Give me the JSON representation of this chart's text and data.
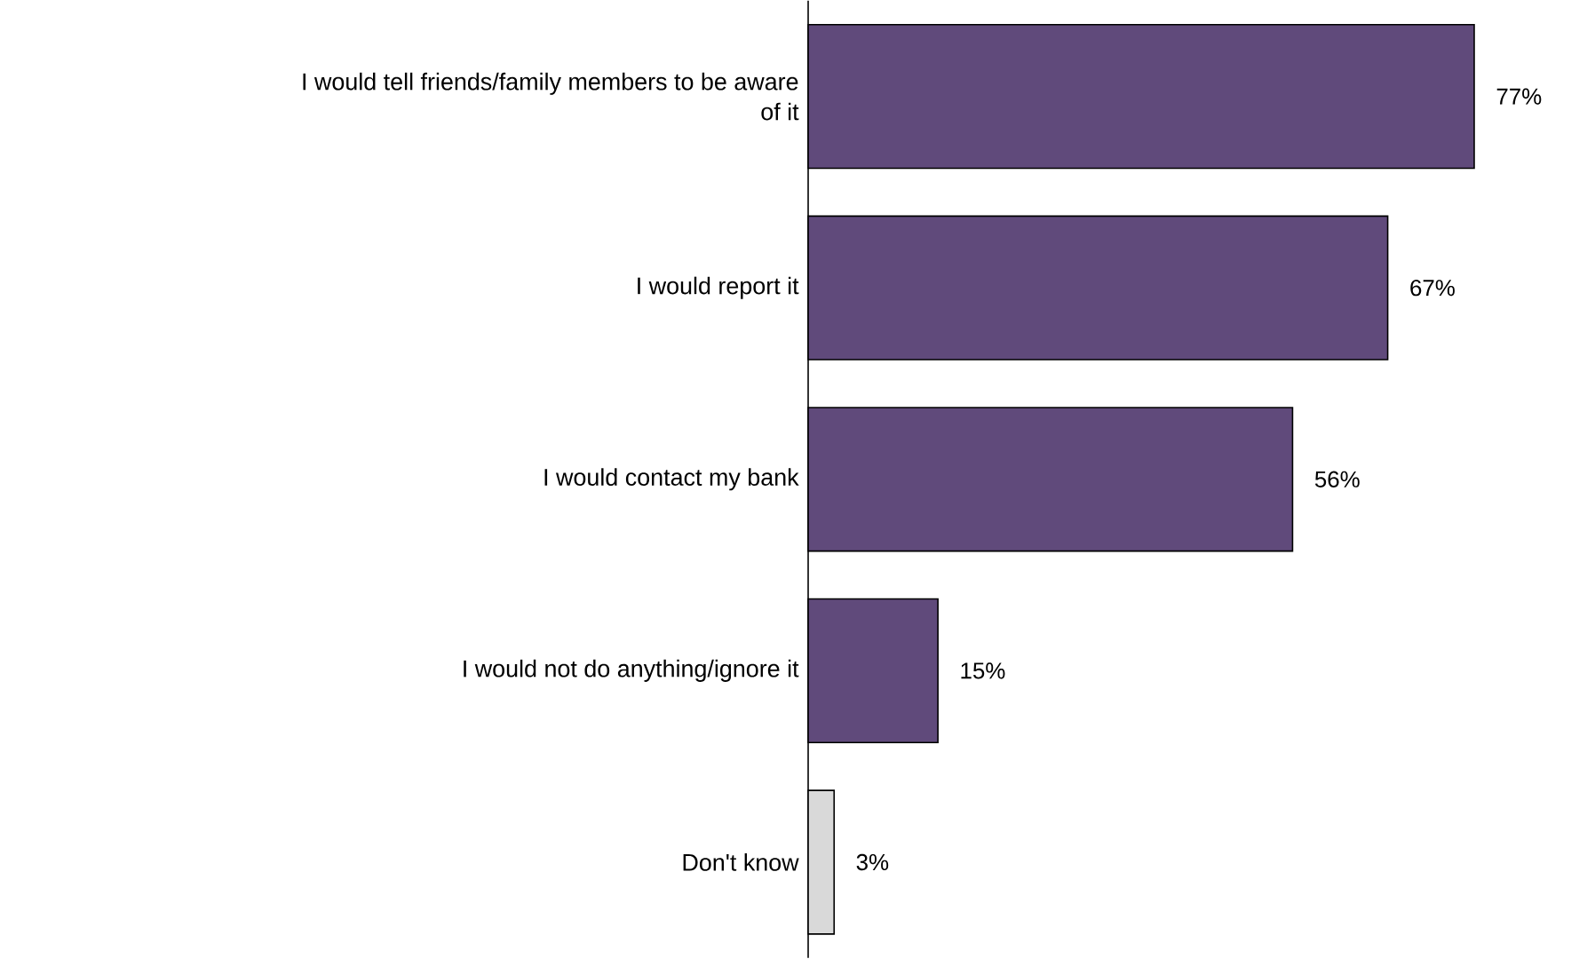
{
  "chart_data": {
    "type": "bar",
    "orientation": "horizontal",
    "categories": [
      "I would tell friends/family members to be aware of it",
      "I would report it",
      "I would contact my bank",
      "I would not do anything/ignore it",
      "Don't know"
    ],
    "values": [
      77,
      67,
      56,
      15,
      3
    ],
    "value_labels": [
      "77%",
      "67%",
      "56%",
      "15%",
      "3%"
    ],
    "colors": [
      "#604a7b",
      "#604a7b",
      "#604a7b",
      "#604a7b",
      "#d9d9d9"
    ],
    "tick_labels": "y"
  }
}
